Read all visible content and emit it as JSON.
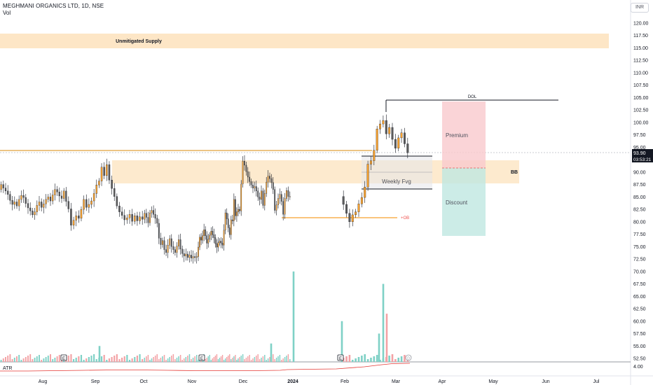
{
  "header": {
    "symbol_line": "MEGHMANI ORGANICS LTD, 1D, NSE",
    "indicator": "Vol",
    "currency": "INR"
  },
  "chart_data": {
    "type": "candlestick",
    "price_axis": {
      "ticks": [
        "120.00",
        "117.50",
        "115.00",
        "112.50",
        "110.00",
        "107.50",
        "105.00",
        "102.50",
        "100.00",
        "97.50",
        "95.00",
        "92.50",
        "90.00",
        "87.50",
        "85.00",
        "82.50",
        "80.00",
        "77.50",
        "75.00",
        "72.50",
        "70.00",
        "67.50",
        "65.00",
        "62.50",
        "60.00",
        "57.50",
        "55.00",
        "52.50"
      ],
      "atr_tick": "4.00",
      "last_price": "93.90",
      "countdown": "03:53:21"
    },
    "time_axis": [
      "Aug",
      "Sep",
      "Oct",
      "Nov",
      "Dec",
      "2024",
      "Feb",
      "Mar",
      "Apr",
      "May",
      "Jun",
      "Jul"
    ],
    "annotations": {
      "supply_zone": "Unmitigated Supply",
      "dol": "DOL",
      "premium": "Premium",
      "discount": "Discount",
      "bb": "BB",
      "weekly_fvg": "Weekly Fvg",
      "ob": "+OB",
      "atr": "ATR",
      "earnings": "E",
      "dividend": "D"
    },
    "colors": {
      "up": "#f7a12e",
      "down": "#5b5b5b",
      "vol_up": "#7fd1c6",
      "vol_down": "#f3a2a5",
      "zone": "#fde6c6",
      "premium": "#f9c9cd",
      "discount": "#bfe7e1",
      "atr_line": "#e53935",
      "last_price_bg": "#131722"
    },
    "price_min": 51,
    "price_max": 122.5,
    "series": [
      {
        "name": "Aug",
        "closes": [
          87.5,
          86.8,
          86.2,
          85.5,
          84.3,
          83.5,
          84.0,
          83.2,
          84.5,
          85.3,
          84.9,
          83.7,
          82.8,
          82.2,
          81.4,
          82.0,
          83.3,
          84.0,
          82.9,
          83.6,
          84.5,
          85.0,
          84.2,
          85.4,
          86.5,
          86.0,
          85.2,
          84.7,
          86.2,
          84.1
        ]
      },
      {
        "name": "Sep",
        "closes": [
          82.6,
          79.3,
          80.3,
          81.2,
          80.7,
          82.5,
          84.5,
          82.9,
          83.5,
          84.2,
          85.7,
          87.4,
          88.2,
          91.0,
          89.3,
          91.5,
          88.4,
          86.7,
          85.1,
          83.2,
          82.0,
          81.3,
          80.4,
          80.8,
          81.5,
          80.1,
          81.2,
          80.2,
          81.0,
          80.5
        ]
      },
      {
        "name": "Oct",
        "closes": [
          81.7,
          80.9,
          79.8,
          81.8,
          82.3,
          81.5,
          80.7,
          79.7,
          76.7,
          75.4,
          76.2,
          74.4,
          73.8,
          75.3,
          76.6,
          75.0,
          74.4,
          73.8,
          75.1,
          76.4,
          74.5,
          73.6,
          73.1,
          73.5,
          72.8,
          73.3,
          72.7,
          73.0,
          72.8,
          73.0
        ]
      },
      {
        "name": "Nov",
        "closes": [
          74.9,
          76.9,
          76.3,
          77.2,
          78.4,
          77.2,
          75.7,
          76.5,
          77.3,
          78.1,
          77.4,
          76.8,
          75.6,
          74.9,
          75.8,
          76.1,
          75.7,
          75.3,
          78.3,
          81.8,
          80.6,
          78.8,
          77.4,
          80.4,
          80.2,
          84.5,
          81.2,
          82.0,
          82.5,
          82.2
        ]
      },
      {
        "name": "Dec",
        "closes": [
          87.6,
          92.2,
          91.4,
          90.1,
          89.0,
          88.1,
          87.4,
          86.8,
          87.1,
          86.2,
          85.0,
          84.5,
          86.2,
          83.3,
          85.7,
          88.0,
          89.2,
          88.7,
          87.9,
          86.5,
          82.3,
          83.4,
          84.7,
          85.5,
          84.1,
          81.5,
          84.7,
          86.3,
          85.1,
          85.1
        ]
      },
      {
        "name": "Feb",
        "closes": [
          83.5,
          81.7,
          80.0,
          81.4,
          82.0,
          83.6,
          84.9,
          87.0,
          91.6,
          92.3,
          94.4,
          98.7,
          99.7,
          100.4,
          97.7,
          99.0,
          96.6,
          94.8,
          96.9,
          97.9,
          95.7,
          93.9
        ]
      }
    ],
    "volume": {
      "spike_labels": [
        "70.00",
        "67.50",
        "60.00"
      ]
    }
  }
}
